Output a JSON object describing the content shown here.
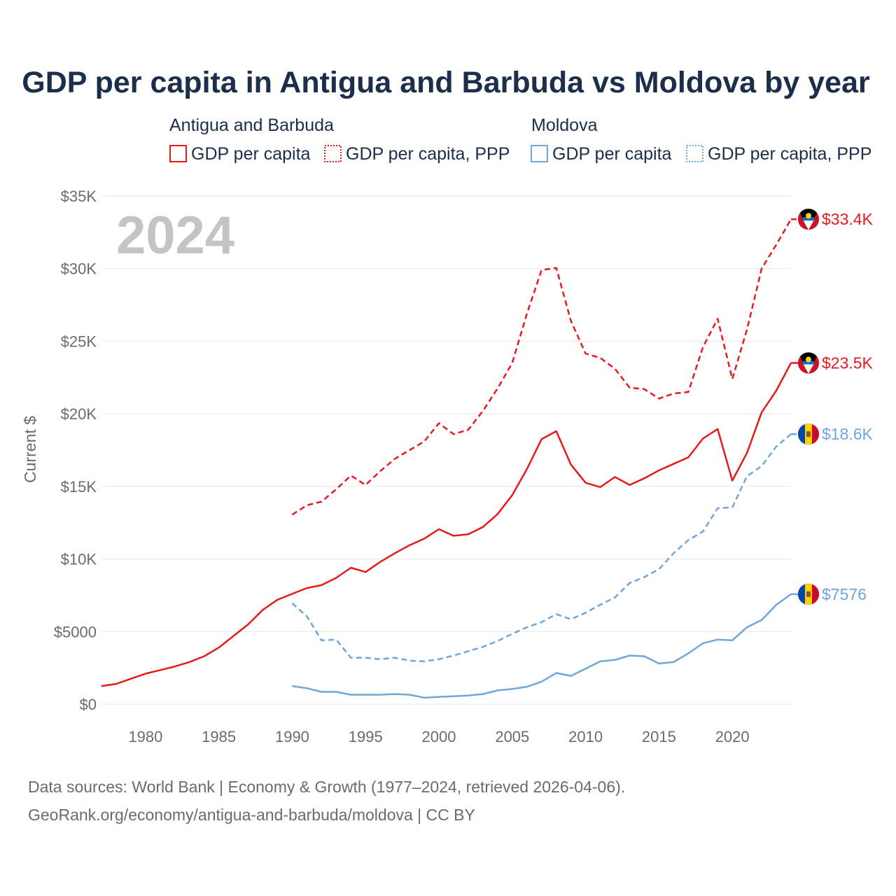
{
  "chart_data": {
    "type": "line",
    "title": "GDP per capita in Antigua and Barbuda vs Moldova by year",
    "year_stamp": "2024",
    "ylabel": "Current $",
    "xlabel": "",
    "xlim": [
      1977,
      2024
    ],
    "ylim": [
      0,
      35000
    ],
    "x_ticks": [
      1980,
      1985,
      1990,
      1995,
      2000,
      2005,
      2010,
      2015,
      2020
    ],
    "x_tick_labels": [
      "1980",
      "1985",
      "1990",
      "1995",
      "2000",
      "2005",
      "2010",
      "2015",
      "2020"
    ],
    "y_ticks": [
      0,
      5000,
      10000,
      15000,
      20000,
      25000,
      30000,
      35000
    ],
    "y_tick_labels": [
      "$0",
      "$5000",
      "$10K",
      "$15K",
      "$20K",
      "$25K",
      "$30K",
      "$35K"
    ],
    "grid": true,
    "legend": {
      "placement": "top",
      "groups": [
        {
          "country": "Antigua and Barbuda",
          "color": "#e8191d",
          "items": [
            {
              "label": "GDP per capita",
              "style": "solid"
            },
            {
              "label": "GDP per capita, PPP",
              "style": "dotted"
            }
          ]
        },
        {
          "country": "Moldova",
          "color": "#6fa6dc",
          "items": [
            {
              "label": "GDP per capita",
              "style": "solid"
            },
            {
              "label": "GDP per capita, PPP",
              "style": "dotted"
            }
          ]
        }
      ]
    },
    "series": [
      {
        "name": "Antigua and Barbuda GDP per capita",
        "country": "Antigua and Barbuda",
        "color": "#e8191d",
        "style": "solid",
        "end_label": "$23.5K",
        "flag": "antigua",
        "x": [
          1977,
          1978,
          1979,
          1980,
          1981,
          1982,
          1983,
          1984,
          1985,
          1986,
          1987,
          1988,
          1989,
          1990,
          1991,
          1992,
          1993,
          1994,
          1995,
          1996,
          1997,
          1998,
          1999,
          2000,
          2001,
          2002,
          2003,
          2004,
          2005,
          2006,
          2007,
          2008,
          2009,
          2010,
          2011,
          2012,
          2013,
          2014,
          2015,
          2016,
          2017,
          2018,
          2019,
          2020,
          2021,
          2022,
          2023,
          2024
        ],
        "values": [
          1250,
          1400,
          1750,
          2100,
          2350,
          2600,
          2900,
          3300,
          3900,
          4700,
          5500,
          6500,
          7200,
          7600,
          8000,
          8200,
          8700,
          9400,
          9100,
          9800,
          10400,
          10950,
          11400,
          12050,
          11600,
          11700,
          12200,
          13100,
          14400,
          16200,
          18250,
          18800,
          16500,
          15250,
          14950,
          15650,
          15100,
          15550,
          16100,
          16550,
          17000,
          18300,
          18950,
          15400,
          17300,
          20100,
          21600,
          23500
        ]
      },
      {
        "name": "Antigua and Barbuda GDP per capita, PPP",
        "country": "Antigua and Barbuda",
        "color": "#e8191d",
        "style": "dashed",
        "end_label": "$33.4K",
        "flag": "antigua",
        "x": [
          1990,
          1991,
          1992,
          1993,
          1994,
          1995,
          1996,
          1997,
          1998,
          1999,
          2000,
          2001,
          2002,
          2003,
          2004,
          2005,
          2006,
          2007,
          2008,
          2009,
          2010,
          2011,
          2012,
          2013,
          2014,
          2015,
          2016,
          2017,
          2018,
          2019,
          2020,
          2021,
          2022,
          2023,
          2024
        ],
        "values": [
          13050,
          13700,
          13950,
          14800,
          15750,
          15100,
          16050,
          16900,
          17500,
          18100,
          19350,
          18600,
          18900,
          20200,
          21750,
          23500,
          26900,
          29900,
          30050,
          26400,
          24150,
          23850,
          23100,
          21800,
          21700,
          21050,
          21400,
          21500,
          24600,
          26550,
          22400,
          25800,
          30000,
          31650,
          33400
        ]
      },
      {
        "name": "Moldova GDP per capita",
        "country": "Moldova",
        "color": "#6fa6dc",
        "style": "solid",
        "end_label": "$7576",
        "flag": "moldova",
        "x": [
          1990,
          1991,
          1992,
          1993,
          1994,
          1995,
          1996,
          1997,
          1998,
          1999,
          2000,
          2001,
          2002,
          2003,
          2004,
          2005,
          2006,
          2007,
          2008,
          2009,
          2010,
          2011,
          2012,
          2013,
          2014,
          2015,
          2016,
          2017,
          2018,
          2019,
          2020,
          2021,
          2022,
          2023,
          2024
        ],
        "values": [
          1250,
          1100,
          850,
          850,
          650,
          650,
          650,
          700,
          650,
          450,
          500,
          550,
          600,
          700,
          950,
          1050,
          1200,
          1550,
          2150,
          1950,
          2450,
          2950,
          3050,
          3350,
          3300,
          2800,
          2900,
          3500,
          4200,
          4450,
          4400,
          5300,
          5800,
          6850,
          7576
        ]
      },
      {
        "name": "Moldova GDP per capita, PPP",
        "country": "Moldova",
        "color": "#6fa6dc",
        "style": "dashed",
        "end_label": "$18.6K",
        "flag": "moldova",
        "x": [
          1990,
          1991,
          1992,
          1993,
          1994,
          1995,
          1996,
          1997,
          1998,
          1999,
          2000,
          2001,
          2002,
          2003,
          2004,
          2005,
          2006,
          2007,
          2008,
          2009,
          2010,
          2011,
          2012,
          2013,
          2014,
          2015,
          2016,
          2017,
          2018,
          2019,
          2020,
          2021,
          2022,
          2023,
          2024
        ],
        "values": [
          6950,
          6050,
          4400,
          4450,
          3200,
          3200,
          3100,
          3200,
          3000,
          2950,
          3100,
          3350,
          3650,
          3950,
          4350,
          4850,
          5300,
          5650,
          6200,
          5850,
          6300,
          6850,
          7350,
          8350,
          8750,
          9300,
          10400,
          11300,
          11900,
          13500,
          13550,
          15700,
          16400,
          17750,
          18600
        ]
      }
    ]
  },
  "source": {
    "line1": "Data sources: World Bank | Economy & Growth (1977–2024, retrieved 2026-04-06).",
    "line2": "GeoRank.org/economy/antigua-and-barbuda/moldova | CC BY"
  },
  "colors": {
    "antigua": "#e8191d",
    "moldova": "#6fa6dc",
    "title": "#1c2e4a"
  }
}
